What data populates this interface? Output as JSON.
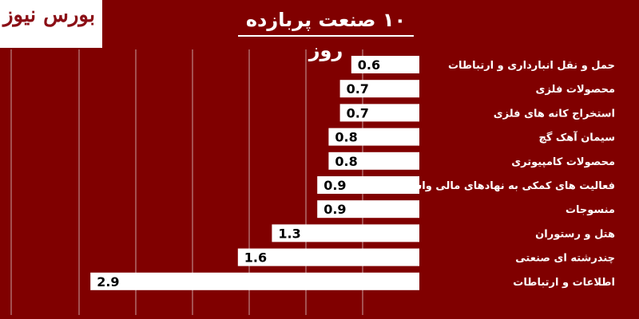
{
  "logo": {
    "text": "بورس نیوز"
  },
  "chart_data": {
    "type": "bar",
    "orientation": "horizontal",
    "title": "۱۰ صنعت پربازده روز",
    "categories": [
      "حمل و نقل انبارداری و ارتباطات",
      "محصولات فلزی",
      "استخراج کانه های فلزی",
      "سیمان آهک گچ",
      "محصولات کامپیوتری",
      "فعالیت های کمکی به نهادهای مالی واسط",
      "منسوجات",
      "هتل و رستوران",
      "چندرشته ای صنعتی",
      "اطلاعات و ارتباطات"
    ],
    "values": [
      0.6,
      0.7,
      0.7,
      0.8,
      0.8,
      0.9,
      0.9,
      1.3,
      1.6,
      2.9
    ],
    "data_labels": [
      "0.6",
      "0.7",
      "0.7",
      "0.8",
      "0.8",
      "0.9",
      "0.9",
      "1.3",
      "1.6",
      "2.9"
    ],
    "xlim": [
      0,
      3.2
    ],
    "grid": true,
    "colors": {
      "background": "#800000",
      "bar": "#ffffff",
      "grid": "#c8a0a0",
      "text": "#ffffff",
      "value_text": "#000000"
    }
  }
}
